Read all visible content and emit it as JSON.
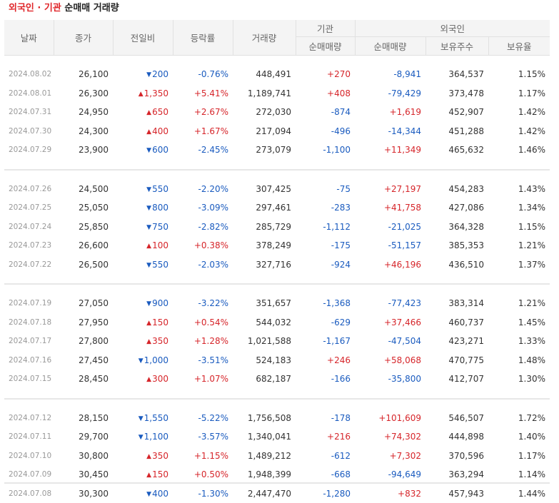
{
  "title": {
    "part1": "외국인",
    "dot": "·",
    "part2": "기관",
    "part3": "순매매",
    "part4": "거래량"
  },
  "headers": {
    "date": "날짜",
    "close": "종가",
    "change": "전일비",
    "rate": "등락률",
    "volume": "거래량",
    "inst": "기관",
    "foreign": "외국인",
    "inst_net": "순매매량",
    "foreign_net": "순매매량",
    "foreign_shares": "보유주수",
    "foreign_ratio": "보유율"
  },
  "groups": [
    [
      {
        "date": "2024.08.02",
        "close": "26,100",
        "dir": "down",
        "change": "200",
        "rate": "-0.76%",
        "volume": "448,491",
        "inst": "+270",
        "foreign": "-8,941",
        "shares": "364,537",
        "ratio": "1.15%"
      },
      {
        "date": "2024.08.01",
        "close": "26,300",
        "dir": "up",
        "change": "1,350",
        "rate": "+5.41%",
        "volume": "1,189,741",
        "inst": "+408",
        "foreign": "-79,429",
        "shares": "373,478",
        "ratio": "1.17%"
      },
      {
        "date": "2024.07.31",
        "close": "24,950",
        "dir": "up",
        "change": "650",
        "rate": "+2.67%",
        "volume": "272,030",
        "inst": "-874",
        "foreign": "+1,619",
        "shares": "452,907",
        "ratio": "1.42%"
      },
      {
        "date": "2024.07.30",
        "close": "24,300",
        "dir": "up",
        "change": "400",
        "rate": "+1.67%",
        "volume": "217,094",
        "inst": "-496",
        "foreign": "-14,344",
        "shares": "451,288",
        "ratio": "1.42%"
      },
      {
        "date": "2024.07.29",
        "close": "23,900",
        "dir": "down",
        "change": "600",
        "rate": "-2.45%",
        "volume": "273,079",
        "inst": "-1,100",
        "foreign": "+11,349",
        "shares": "465,632",
        "ratio": "1.46%"
      }
    ],
    [
      {
        "date": "2024.07.26",
        "close": "24,500",
        "dir": "down",
        "change": "550",
        "rate": "-2.20%",
        "volume": "307,425",
        "inst": "-75",
        "foreign": "+27,197",
        "shares": "454,283",
        "ratio": "1.43%"
      },
      {
        "date": "2024.07.25",
        "close": "25,050",
        "dir": "down",
        "change": "800",
        "rate": "-3.09%",
        "volume": "297,461",
        "inst": "-283",
        "foreign": "+41,758",
        "shares": "427,086",
        "ratio": "1.34%"
      },
      {
        "date": "2024.07.24",
        "close": "25,850",
        "dir": "down",
        "change": "750",
        "rate": "-2.82%",
        "volume": "285,729",
        "inst": "-1,112",
        "foreign": "-21,025",
        "shares": "364,328",
        "ratio": "1.15%"
      },
      {
        "date": "2024.07.23",
        "close": "26,600",
        "dir": "up",
        "change": "100",
        "rate": "+0.38%",
        "volume": "378,249",
        "inst": "-175",
        "foreign": "-51,157",
        "shares": "385,353",
        "ratio": "1.21%"
      },
      {
        "date": "2024.07.22",
        "close": "26,500",
        "dir": "down",
        "change": "550",
        "rate": "-2.03%",
        "volume": "327,716",
        "inst": "-924",
        "foreign": "+46,196",
        "shares": "436,510",
        "ratio": "1.37%"
      }
    ],
    [
      {
        "date": "2024.07.19",
        "close": "27,050",
        "dir": "down",
        "change": "900",
        "rate": "-3.22%",
        "volume": "351,657",
        "inst": "-1,368",
        "foreign": "-77,423",
        "shares": "383,314",
        "ratio": "1.21%"
      },
      {
        "date": "2024.07.18",
        "close": "27,950",
        "dir": "up",
        "change": "150",
        "rate": "+0.54%",
        "volume": "544,032",
        "inst": "-629",
        "foreign": "+37,466",
        "shares": "460,737",
        "ratio": "1.45%"
      },
      {
        "date": "2024.07.17",
        "close": "27,800",
        "dir": "up",
        "change": "350",
        "rate": "+1.28%",
        "volume": "1,021,588",
        "inst": "-1,167",
        "foreign": "-47,504",
        "shares": "423,271",
        "ratio": "1.33%"
      },
      {
        "date": "2024.07.16",
        "close": "27,450",
        "dir": "down",
        "change": "1,000",
        "rate": "-3.51%",
        "volume": "524,183",
        "inst": "+246",
        "foreign": "+58,068",
        "shares": "470,775",
        "ratio": "1.48%"
      },
      {
        "date": "2024.07.15",
        "close": "28,450",
        "dir": "up",
        "change": "300",
        "rate": "+1.07%",
        "volume": "682,187",
        "inst": "-166",
        "foreign": "-35,800",
        "shares": "412,707",
        "ratio": "1.30%"
      }
    ],
    [
      {
        "date": "2024.07.12",
        "close": "28,150",
        "dir": "down",
        "change": "1,550",
        "rate": "-5.22%",
        "volume": "1,756,508",
        "inst": "-178",
        "foreign": "+101,609",
        "shares": "546,507",
        "ratio": "1.72%"
      },
      {
        "date": "2024.07.11",
        "close": "29,700",
        "dir": "down",
        "change": "1,100",
        "rate": "-3.57%",
        "volume": "1,340,041",
        "inst": "+216",
        "foreign": "+74,302",
        "shares": "444,898",
        "ratio": "1.40%"
      },
      {
        "date": "2024.07.10",
        "close": "30,800",
        "dir": "up",
        "change": "350",
        "rate": "+1.15%",
        "volume": "1,489,212",
        "inst": "-612",
        "foreign": "+7,302",
        "shares": "370,596",
        "ratio": "1.17%"
      },
      {
        "date": "2024.07.09",
        "close": "30,450",
        "dir": "up",
        "change": "150",
        "rate": "+0.50%",
        "volume": "1,948,399",
        "inst": "-668",
        "foreign": "-94,649",
        "shares": "363,294",
        "ratio": "1.14%"
      },
      {
        "date": "2024.07.08",
        "close": "30,300",
        "dir": "down",
        "change": "400",
        "rate": "-1.30%",
        "volume": "2,447,470",
        "inst": "-1,280",
        "foreign": "+832",
        "shares": "457,943",
        "ratio": "1.44%"
      }
    ]
  ],
  "icons": {
    "up": "▲",
    "down": "▼"
  },
  "colors": {
    "up": "#d6252a",
    "down": "#1a5bbf",
    "title_accent": "#e0262a"
  }
}
